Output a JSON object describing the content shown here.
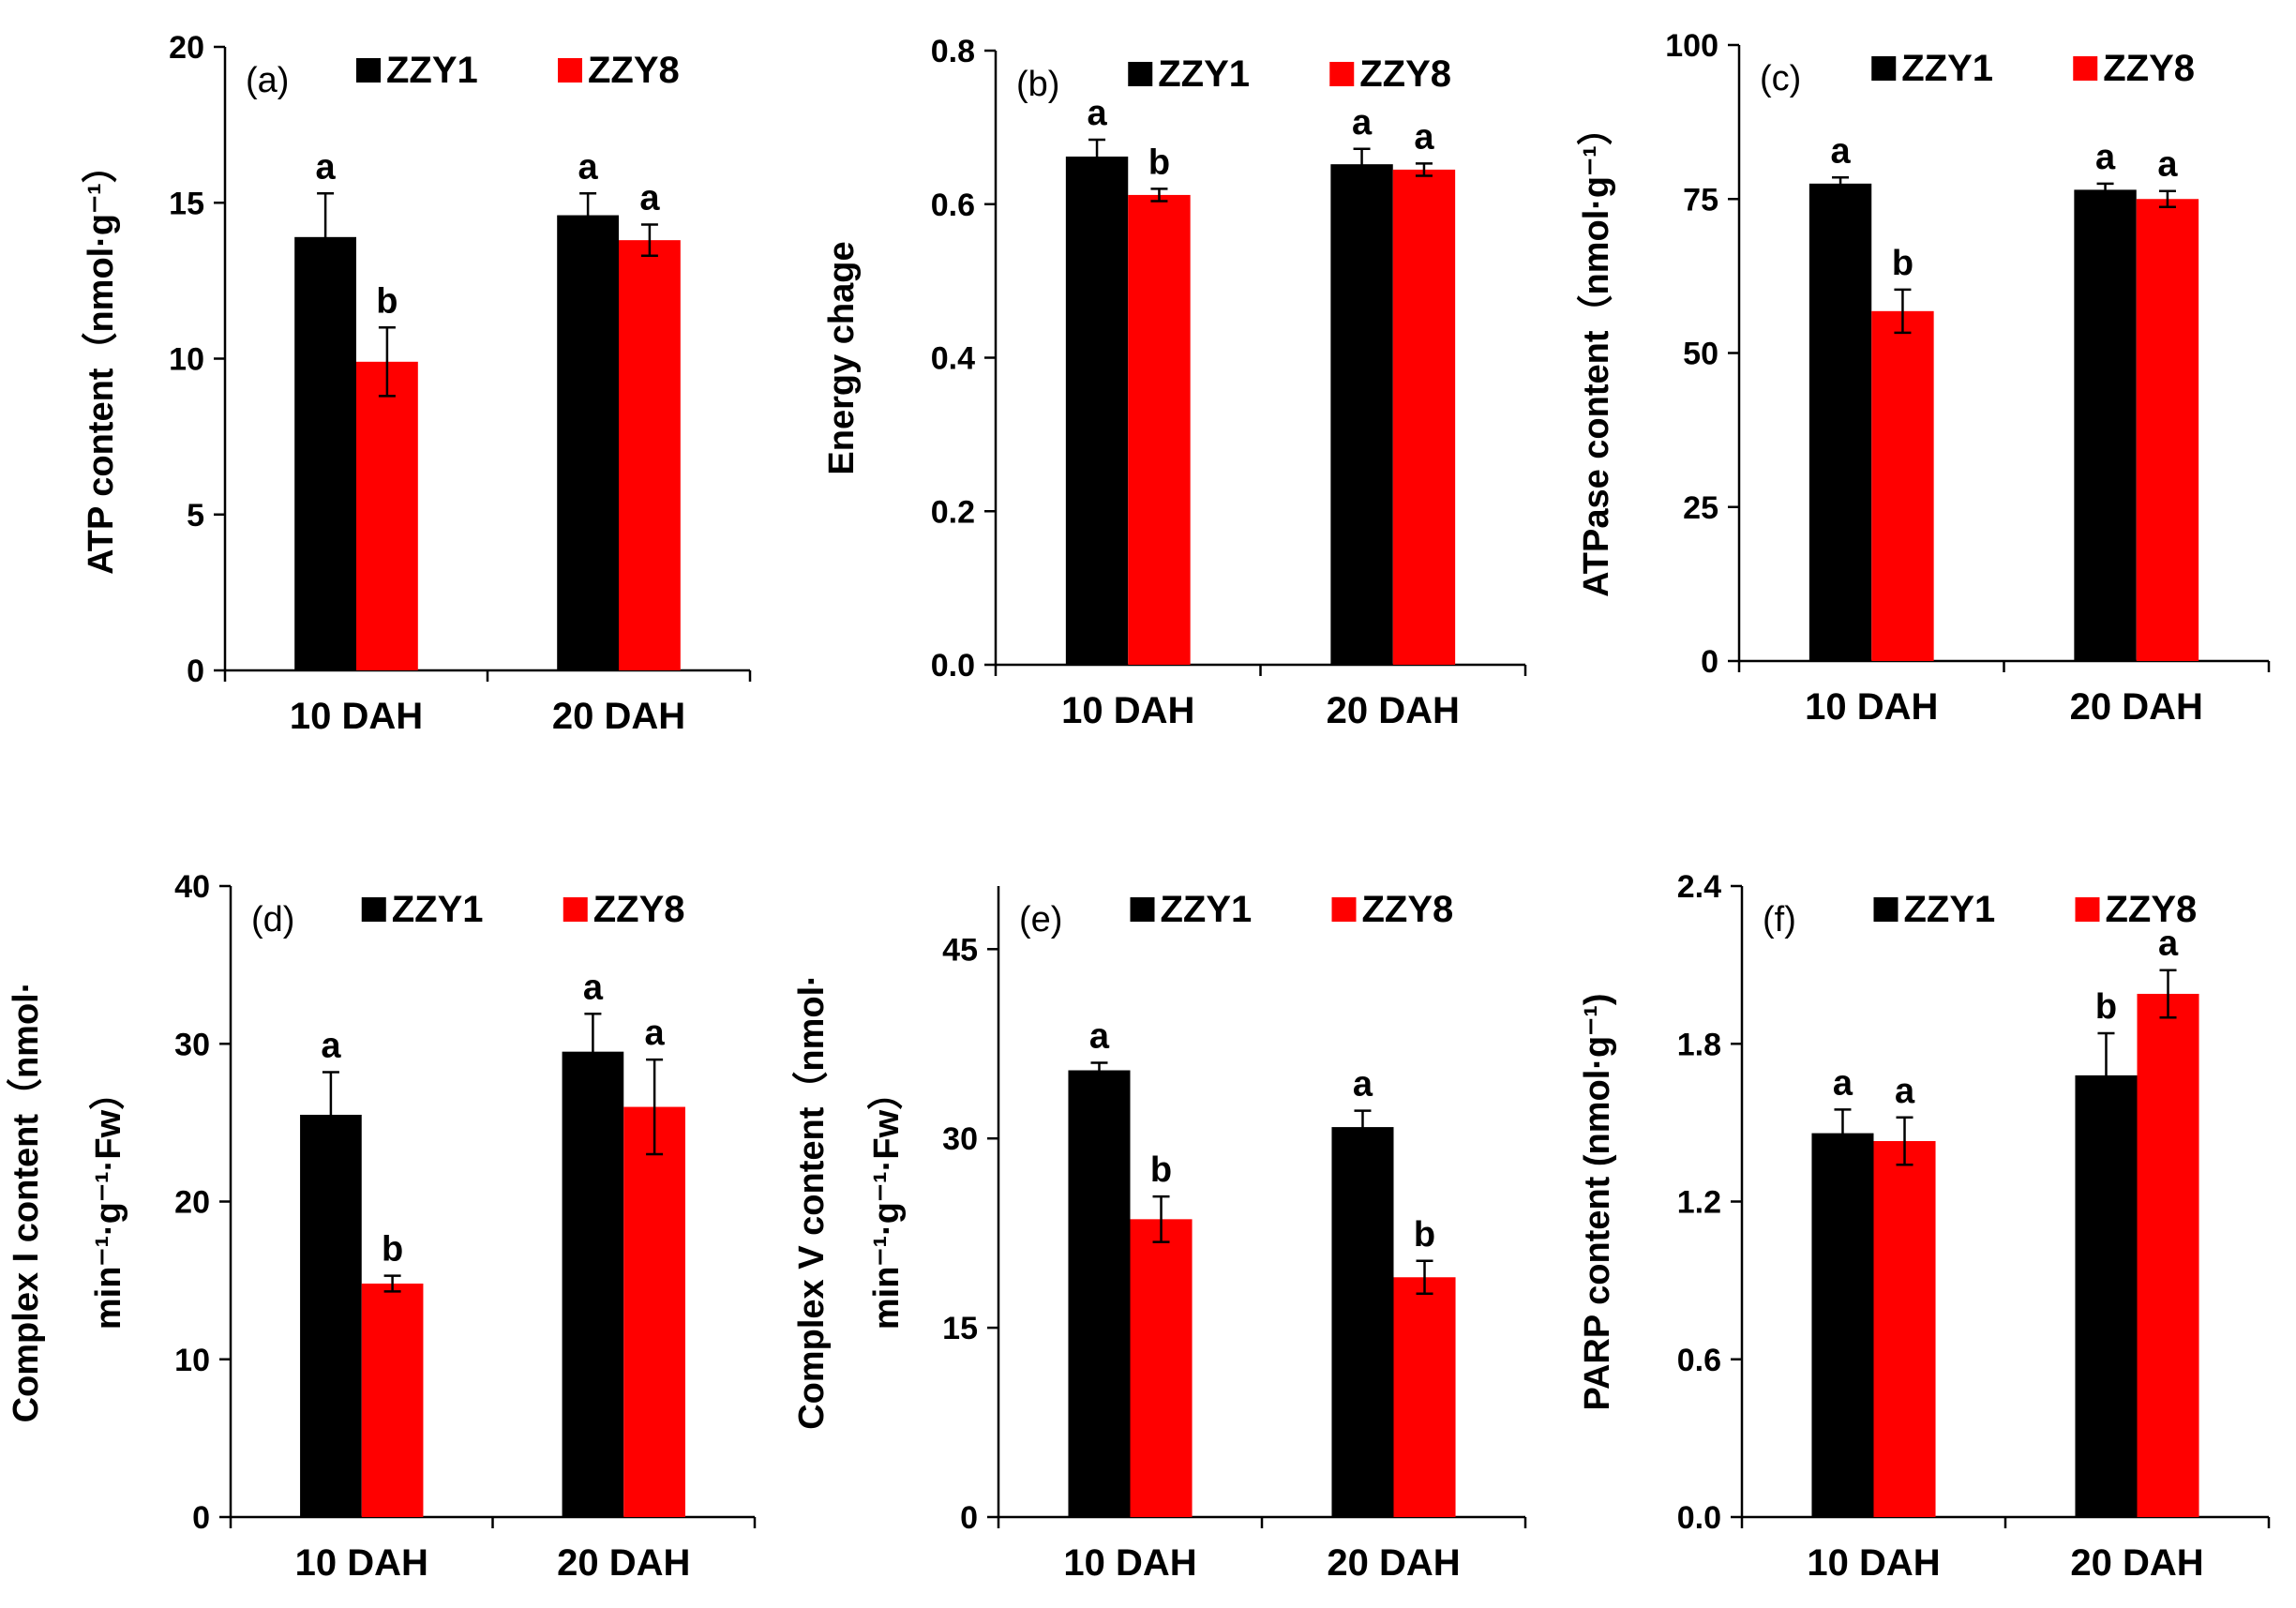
{
  "colors": {
    "ZZY1": "#000000",
    "ZZY8": "#ff0000"
  },
  "chart_data": [
    {
      "type": "bar",
      "panel": "(a)",
      "ylabel": "ATP content（nmol·g⁻¹）",
      "ylim": [
        0,
        20
      ],
      "yticks": [
        "0",
        "5",
        "10",
        "15",
        "20"
      ],
      "categories": [
        "10 DAH",
        "20 DAH"
      ],
      "series": [
        {
          "name": "ZZY1",
          "values": [
            13.9,
            14.6
          ],
          "errors": [
            1.4,
            0.7
          ],
          "letters": [
            "a",
            "a"
          ]
        },
        {
          "name": "ZZY8",
          "values": [
            9.9,
            13.8
          ],
          "errors": [
            1.1,
            0.5
          ],
          "letters": [
            "b",
            "a"
          ]
        }
      ]
    },
    {
      "type": "bar",
      "panel": "(b)",
      "ylabel": "Energy chage",
      "ylim": [
        0,
        0.8
      ],
      "yticks": [
        "0.0",
        "0.2",
        "0.4",
        "0.6",
        "0.8"
      ],
      "categories": [
        "10 DAH",
        "20 DAH"
      ],
      "series": [
        {
          "name": "ZZY1",
          "values": [
            0.662,
            0.652
          ],
          "errors": [
            0.022,
            0.02
          ],
          "letters": [
            "a",
            "a"
          ]
        },
        {
          "name": "ZZY8",
          "values": [
            0.612,
            0.645
          ],
          "errors": [
            0.008,
            0.008
          ],
          "letters": [
            "b",
            "a"
          ]
        }
      ]
    },
    {
      "type": "bar",
      "panel": "(c)",
      "ylabel": "ATPase content（nmol·g⁻¹）",
      "ylim": [
        0,
        100
      ],
      "yticks": [
        "0",
        "25",
        "50",
        "75",
        "100"
      ],
      "categories": [
        "10 DAH",
        "20 DAH"
      ],
      "series": [
        {
          "name": "ZZY1",
          "values": [
            77.5,
            76.5
          ],
          "errors": [
            1.0,
            1.0
          ],
          "letters": [
            "a",
            "a"
          ]
        },
        {
          "name": "ZZY8",
          "values": [
            56.8,
            75.0
          ],
          "errors": [
            3.5,
            1.3
          ],
          "letters": [
            "b",
            "a"
          ]
        }
      ]
    },
    {
      "type": "bar",
      "panel": "(d)",
      "ylabel": [
        "Complex I content（nmol·",
        "min⁻¹·g⁻¹·Fw）"
      ],
      "ylim": [
        0,
        40
      ],
      "yticks": [
        "0",
        "10",
        "20",
        "30",
        "40"
      ],
      "categories": [
        "10 DAH",
        "20 DAH"
      ],
      "series": [
        {
          "name": "ZZY1",
          "values": [
            25.5,
            29.5
          ],
          "errors": [
            2.7,
            2.4
          ],
          "letters": [
            "a",
            "a"
          ]
        },
        {
          "name": "ZZY8",
          "values": [
            14.8,
            26.0
          ],
          "errors": [
            0.5,
            3.0
          ],
          "letters": [
            "b",
            "a"
          ]
        }
      ]
    },
    {
      "type": "bar",
      "panel": "(e)",
      "ylabel": [
        "Complex V content（nmol·",
        "min⁻¹·g⁻¹·Fw）"
      ],
      "ylim": [
        0,
        50
      ],
      "yticks": [
        "0",
        "15",
        "30",
        "45"
      ],
      "categories": [
        "10 DAH",
        "20 DAH"
      ],
      "series": [
        {
          "name": "ZZY1",
          "values": [
            35.4,
            30.9
          ],
          "errors": [
            0.6,
            1.3
          ],
          "letters": [
            "a",
            "a"
          ]
        },
        {
          "name": "ZZY8",
          "values": [
            23.6,
            19.0
          ],
          "errors": [
            1.8,
            1.3
          ],
          "letters": [
            "b",
            "b"
          ]
        }
      ]
    },
    {
      "type": "bar",
      "panel": "(f)",
      "ylabel": "PARP content (nmol·g⁻¹)",
      "ylim": [
        0,
        2.4
      ],
      "yticks": [
        "0.0",
        "0.6",
        "1.2",
        "1.8",
        "2.4"
      ],
      "categories": [
        "10 DAH",
        "20 DAH"
      ],
      "series": [
        {
          "name": "ZZY1",
          "values": [
            1.46,
            1.68
          ],
          "errors": [
            0.09,
            0.16
          ],
          "letters": [
            "a",
            "b"
          ]
        },
        {
          "name": "ZZY8",
          "values": [
            1.43,
            1.99
          ],
          "errors": [
            0.09,
            0.09
          ],
          "letters": [
            "a",
            "a"
          ]
        }
      ]
    }
  ]
}
